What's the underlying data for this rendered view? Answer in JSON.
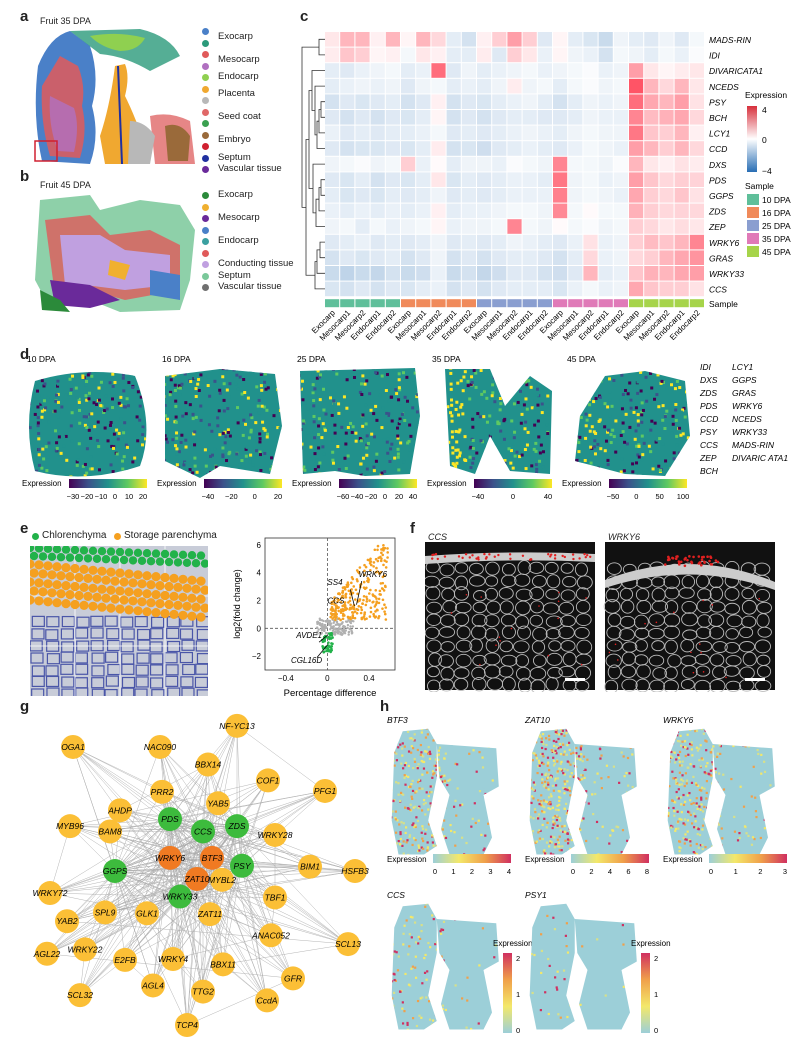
{
  "panels": {
    "a": "a",
    "b": "b",
    "c": "c",
    "d": "d",
    "e": "e",
    "f": "f",
    "g": "g",
    "h": "h"
  },
  "panel_a": {
    "title": "Fruit 35 DPA",
    "legend": [
      {
        "color": "#4a80c8",
        "label": "Exocarp",
        "group": "Exocarp"
      },
      {
        "color": "#2b9a7a",
        "label": "",
        "group": "Exocarp"
      },
      {
        "color": "#e05a5a",
        "label": "Mesocarp",
        "group": "Mesocarp"
      },
      {
        "color": "#b070c0",
        "label": "",
        "group": "Mesocarp"
      },
      {
        "color": "#8fd050",
        "label": "Endocarp",
        "group": "Endocarp"
      },
      {
        "color": "#f0a830",
        "label": "Placenta",
        "group": "Placenta"
      },
      {
        "color": "#b8b8b8",
        "label": "",
        "group": "Placenta"
      },
      {
        "color": "#e06868",
        "label": "Seed coat",
        "group": "Seed coat"
      },
      {
        "color": "#3aa050",
        "label": "",
        "group": "Seed coat"
      },
      {
        "color": "#9a6a3a",
        "label": "Embryo",
        "group": "Embryo"
      },
      {
        "color": "#d02030",
        "label": "",
        "group": "Embryo"
      },
      {
        "color": "#2030a0",
        "label": "Septum",
        "group": "Septum"
      },
      {
        "color": "#6a2a9a",
        "label": "Vascular tissue",
        "group": "Vascular tissue"
      }
    ]
  },
  "panel_b": {
    "title": "Fruit 45 DPA",
    "legend": [
      {
        "color": "#2b8a3a",
        "label": "Exocarp"
      },
      {
        "color": "#f0b030",
        "label": ""
      },
      {
        "color": "#6a2a9a",
        "label": "Mesocarp"
      },
      {
        "color": "#4a80c8",
        "label": ""
      },
      {
        "color": "#3aa0a0",
        "label": "Endocarp"
      },
      {
        "color": "#e05a5a",
        "label": ""
      },
      {
        "color": "#c0a0e0",
        "label": "Conducting tissue"
      },
      {
        "color": "#7ac89a",
        "label": "Septum"
      },
      {
        "color": "#707070",
        "label": "Vascular tissue"
      }
    ]
  },
  "heatmap": {
    "genes": [
      "MADS-RIN",
      "IDI",
      "DIVARICATA1",
      "NCEDS",
      "PSY",
      "BCH",
      "LCY1",
      "CCD",
      "DXS",
      "PDS",
      "GGPS",
      "ZDS",
      "ZEP",
      "WRKY6",
      "GRAS",
      "WRKY33",
      "CCS"
    ],
    "columns": [
      "Exocarp",
      "Mesocarp1",
      "Mesocarp2",
      "Endocarp1",
      "Endocarp2",
      "Exocarp",
      "Mesocarp1",
      "Mesocarp2",
      "Endocarp1",
      "Endocarp2",
      "Exocarp",
      "Mesocarp1",
      "Mesocarp2",
      "Endocarp1",
      "Endocarp2",
      "Exocarp",
      "Mesocarp1",
      "Mesocarp2",
      "Endocarp1",
      "Endocarp2",
      "Exocarp",
      "Mesocarp1",
      "Mesocarp2",
      "Endocarp1",
      "Endocarp2"
    ],
    "sample_colors": [
      "#5fbf9a",
      "#5fbf9a",
      "#5fbf9a",
      "#5fbf9a",
      "#5fbf9a",
      "#f08a5a",
      "#f08a5a",
      "#f08a5a",
      "#f08a5a",
      "#f08a5a",
      "#8a9ed0",
      "#8a9ed0",
      "#8a9ed0",
      "#8a9ed0",
      "#8a9ed0",
      "#e07ab8",
      "#e07ab8",
      "#e07ab8",
      "#e07ab8",
      "#e07ab8",
      "#a6d44a",
      "#a6d44a",
      "#a6d44a",
      "#a6d44a",
      "#a6d44a"
    ],
    "sample_row_label": "Sample",
    "expression_title": "Expression",
    "expression_ticks": [
      "4",
      "0",
      "−4"
    ],
    "sample_title": "Sample",
    "samples": [
      {
        "label": "10 DPA",
        "color": "#5fbf9a"
      },
      {
        "label": "16 DPA",
        "color": "#f08a5a"
      },
      {
        "label": "25 DPA",
        "color": "#8a9ed0"
      },
      {
        "label": "35 DPA",
        "color": "#e07ab8"
      },
      {
        "label": "45 DPA",
        "color": "#a6d44a"
      }
    ],
    "values": [
      [
        0.5,
        1.5,
        1.5,
        0.3,
        1.5,
        0.2,
        1.5,
        0.8,
        -0.5,
        -0.8,
        0.3,
        1.0,
        2.0,
        1.0,
        -0.6,
        0.2,
        -0.5,
        -0.7,
        -1.0,
        -0.3,
        -0.5,
        -0.6,
        -0.3,
        -0.6,
        -0.2
      ],
      [
        0.4,
        1.2,
        1.0,
        0.2,
        0.3,
        -0.2,
        0.5,
        0.3,
        -0.5,
        -0.5,
        0.4,
        -0.6,
        1.0,
        0.5,
        -0.4,
        0.2,
        -0.3,
        -0.4,
        -0.8,
        -0.2,
        -0.3,
        -0.5,
        -0.2,
        -0.4,
        -0.1
      ],
      [
        -0.5,
        -0.6,
        -0.4,
        -0.3,
        -0.2,
        -0.5,
        -0.4,
        3.0,
        -0.6,
        -0.3,
        -0.5,
        -0.4,
        -0.3,
        -0.2,
        -0.4,
        -0.3,
        -0.2,
        -0.1,
        -0.4,
        -0.3,
        2.0,
        0.5,
        0.2,
        0.4,
        0.5
      ],
      [
        -0.5,
        -0.4,
        -0.3,
        -0.4,
        -0.3,
        -0.6,
        -0.3,
        -0.2,
        -0.5,
        -0.4,
        -0.5,
        -0.3,
        0.4,
        -0.3,
        -0.2,
        -0.5,
        -0.2,
        -0.1,
        -0.3,
        -0.2,
        3.5,
        1.5,
        0.8,
        1.5,
        0.5
      ],
      [
        -0.8,
        -0.6,
        -0.7,
        -0.6,
        -0.5,
        -0.8,
        -0.6,
        0.3,
        -0.8,
        -0.6,
        -0.7,
        -0.5,
        -0.4,
        -0.3,
        -0.5,
        -0.8,
        -0.5,
        -0.3,
        -0.4,
        -0.3,
        3.0,
        1.8,
        1.5,
        2.0,
        0.6
      ],
      [
        -0.6,
        -0.8,
        -0.6,
        -0.8,
        -0.6,
        -0.7,
        -0.5,
        0.2,
        -0.8,
        -0.6,
        -0.8,
        -0.6,
        -0.5,
        -0.5,
        -0.6,
        -0.6,
        -0.5,
        -0.3,
        -0.4,
        -0.4,
        2.5,
        1.4,
        1.6,
        1.8,
        0.8
      ],
      [
        -0.4,
        -0.6,
        -0.5,
        -0.6,
        -0.5,
        -0.5,
        -0.4,
        -0.2,
        -0.6,
        -0.5,
        -0.6,
        -0.5,
        -0.4,
        -0.3,
        -0.4,
        -0.5,
        -0.3,
        -0.2,
        -0.3,
        -0.3,
        2.8,
        1.2,
        1.0,
        1.5,
        0.3
      ],
      [
        -0.6,
        -0.8,
        -0.7,
        -0.7,
        -0.6,
        -0.7,
        -0.5,
        0.4,
        -0.8,
        -0.7,
        -0.9,
        -0.6,
        -0.5,
        -0.4,
        -0.5,
        -0.6,
        -0.4,
        -0.2,
        -0.3,
        -0.4,
        2.0,
        1.5,
        1.0,
        1.5,
        0.8
      ],
      [
        -0.3,
        -0.2,
        -0.1,
        -0.3,
        -0.2,
        1.0,
        -0.4,
        0.1,
        -0.5,
        -0.3,
        -0.3,
        -0.4,
        -0.1,
        -0.2,
        -0.3,
        2.5,
        -0.2,
        -0.2,
        -0.3,
        -0.1,
        1.5,
        0.5,
        0.3,
        0.6,
        0.4
      ],
      [
        -0.6,
        -0.7,
        -0.5,
        -0.8,
        -0.6,
        -0.7,
        -0.5,
        0.5,
        -0.7,
        -0.5,
        -0.6,
        -0.5,
        -0.4,
        -0.4,
        -0.5,
        2.8,
        -0.3,
        -0.2,
        -0.4,
        -0.3,
        2.0,
        1.2,
        0.8,
        1.0,
        0.9
      ],
      [
        -0.5,
        -0.7,
        -0.6,
        -0.7,
        -0.5,
        -0.6,
        -0.5,
        -0.3,
        -0.6,
        -0.5,
        -0.6,
        -0.5,
        -0.4,
        -0.4,
        -0.4,
        2.6,
        -0.3,
        -0.2,
        -0.3,
        -0.4,
        1.8,
        1.0,
        0.8,
        1.2,
        0.6
      ],
      [
        -0.4,
        -0.5,
        -0.4,
        -0.5,
        -0.4,
        -0.5,
        -0.4,
        0.3,
        -0.5,
        -0.4,
        -0.4,
        -0.3,
        -0.2,
        -0.2,
        -0.3,
        2.4,
        -0.2,
        0.1,
        -0.2,
        -0.2,
        1.6,
        1.0,
        0.8,
        0.9,
        0.8
      ],
      [
        -0.3,
        -0.2,
        -0.5,
        -0.2,
        -0.4,
        -0.3,
        -0.2,
        0.2,
        -0.4,
        -0.3,
        -0.3,
        -0.2,
        2.5,
        -0.2,
        -0.3,
        0.1,
        -0.2,
        -0.1,
        -0.3,
        -0.2,
        1.0,
        0.8,
        0.5,
        0.7,
        0.5
      ],
      [
        -0.6,
        -0.5,
        -0.4,
        -0.6,
        -0.5,
        -0.6,
        -0.5,
        -0.3,
        -0.6,
        -0.5,
        -0.6,
        -0.5,
        -0.3,
        -0.4,
        -0.5,
        -0.6,
        -0.4,
        0.6,
        -0.4,
        -0.3,
        1.0,
        1.4,
        1.2,
        1.5,
        2.5
      ],
      [
        -0.8,
        -0.6,
        -0.7,
        -0.6,
        -0.5,
        -0.8,
        -0.6,
        -0.3,
        -0.8,
        -0.6,
        -0.8,
        -0.6,
        -0.5,
        -0.5,
        -0.6,
        -0.8,
        -0.5,
        0.8,
        -0.4,
        -0.3,
        0.8,
        1.0,
        1.5,
        1.8,
        2.2
      ],
      [
        -1.0,
        -1.2,
        -1.0,
        -1.1,
        -0.8,
        -1.0,
        -0.9,
        -0.4,
        -1.0,
        -0.8,
        -1.1,
        -0.9,
        -0.6,
        -0.6,
        -0.8,
        -0.9,
        -0.6,
        1.5,
        -0.5,
        -0.4,
        1.2,
        1.6,
        1.5,
        1.8,
        2.0
      ],
      [
        -0.7,
        -0.8,
        -0.6,
        -0.8,
        -0.6,
        -0.7,
        -0.5,
        -0.4,
        -0.8,
        -0.6,
        -0.8,
        -0.6,
        -0.5,
        -0.5,
        -0.5,
        -0.7,
        -0.4,
        -0.2,
        -0.4,
        -0.3,
        1.8,
        1.2,
        1.0,
        1.0,
        0.6
      ]
    ]
  },
  "panel_d": {
    "titles": [
      "10 DPA",
      "16 DPA",
      "25 DPA",
      "35 DPA",
      "45 DPA"
    ],
    "colorbar_label": "Expression",
    "ticks": [
      [
        "−30",
        "−20",
        "−10",
        "0",
        "10",
        "20"
      ],
      [
        "−40",
        "−20",
        "0",
        "20"
      ],
      [
        "−60",
        "−40",
        "−20",
        "0",
        "20",
        "40"
      ],
      [
        "−40",
        "0",
        "40"
      ],
      [
        "−50",
        "0",
        "50",
        "100"
      ]
    ],
    "genes_col1": [
      "IDI",
      "DXS",
      "ZDS",
      "PDS",
      "CCD",
      "PSY",
      "CCS",
      "ZEP",
      "BCH"
    ],
    "genes_col2": [
      "LCY1",
      "GGPS",
      "GRAS",
      "WRKY6",
      "NCEDS",
      "WRKY33",
      "MADS-RIN",
      "DIVARIC ATA1"
    ]
  },
  "panel_e": {
    "legend": [
      {
        "label": "Chlorenchyma",
        "color": "#22b24a"
      },
      {
        "label": "Storage parenchyma",
        "color": "#f5a020"
      }
    ],
    "scatter": {
      "xlabel": "Percentage difference",
      "ylabel": "log2(fold change)",
      "xticks": [
        "−0.4",
        "0",
        "0.4"
      ],
      "yticks": [
        "6",
        "4",
        "2",
        "0",
        "−2"
      ],
      "labels_up": [
        "SS4",
        "WRKY6",
        "CCS"
      ],
      "labels_down": [
        "AVDE1",
        "CGL16D"
      ]
    }
  },
  "panel_f": {
    "titles": [
      "CCS",
      "WRKY6"
    ]
  },
  "panel_g": {
    "orange_nodes": [
      "WRKY6",
      "BTF3",
      "ZAT10"
    ],
    "green_nodes": [
      "PDS",
      "CCS",
      "ZDS",
      "GGPS",
      "PSY",
      "WRKY33"
    ],
    "yellow_nodes": [
      "NF-YC13",
      "OGA1",
      "NAC090",
      "BBX14",
      "COF1",
      "PFG1",
      "PRR2",
      "YAB5",
      "AHDP",
      "MYB96",
      "BAM8",
      "WRKY28",
      "BIM1",
      "HSFB3",
      "WRKY72",
      "MYBL2",
      "TBF1",
      "YAB2",
      "SPL9",
      "GLK1",
      "ZAT11",
      "ANAC052",
      "SCL13",
      "AGL22",
      "WRKY22",
      "E2FB",
      "WRKY4",
      "BBX11",
      "GFR",
      "SCL32",
      "AGL4",
      "TTG2",
      "CcdA",
      "TCP4"
    ]
  },
  "panel_h": {
    "titles": [
      "BTF3",
      "ZAT10",
      "WRKY6",
      "CCS",
      "PSY1"
    ],
    "colorbar_label": "Expression",
    "ticks": [
      [
        "0",
        "1",
        "2",
        "3",
        "4"
      ],
      [
        "0",
        "2",
        "4",
        "6",
        "8"
      ],
      [
        "0",
        "1",
        "2",
        "3"
      ],
      [
        "0",
        "1",
        "2"
      ],
      [
        "0",
        "1",
        "2"
      ]
    ]
  }
}
